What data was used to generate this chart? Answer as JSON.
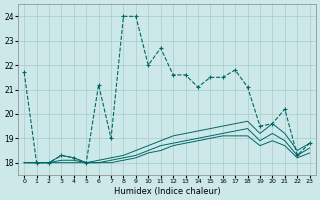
{
  "title": "",
  "xlabel": "Humidex (Indice chaleur)",
  "ylabel": "",
  "background_color": "#cde8e8",
  "grid_color": "#aacccc",
  "line_color": "#006666",
  "xlim": [
    -0.5,
    23.5
  ],
  "ylim": [
    17.5,
    24.5
  ],
  "yticks": [
    18,
    19,
    20,
    21,
    22,
    23,
    24
  ],
  "xticks": [
    0,
    1,
    2,
    3,
    4,
    5,
    6,
    7,
    8,
    9,
    10,
    11,
    12,
    13,
    14,
    15,
    16,
    17,
    18,
    19,
    20,
    21,
    22,
    23
  ],
  "series": [
    {
      "x": [
        0,
        1,
        2,
        3,
        4,
        5,
        6,
        7,
        8,
        9,
        10,
        11,
        12,
        13,
        14,
        15,
        16,
        17,
        18,
        19,
        20,
        21,
        22,
        23
      ],
      "y": [
        21.7,
        18.0,
        18.0,
        18.3,
        18.2,
        18.0,
        21.2,
        19.0,
        24.0,
        24.0,
        22.0,
        22.7,
        21.6,
        21.6,
        21.1,
        21.5,
        21.5,
        21.8,
        21.1,
        19.5,
        19.6,
        20.2,
        18.3,
        18.8
      ],
      "linestyle": "--",
      "marker": "+",
      "markersize": 3,
      "linewidth": 0.8
    },
    {
      "x": [
        0,
        1,
        2,
        3,
        4,
        5,
        6,
        7,
        8,
        9,
        10,
        11,
        12,
        13,
        14,
        15,
        16,
        17,
        18,
        19,
        20,
        21,
        22,
        23
      ],
      "y": [
        18.0,
        18.0,
        18.0,
        18.3,
        18.2,
        18.0,
        18.1,
        18.2,
        18.3,
        18.5,
        18.7,
        18.9,
        19.1,
        19.2,
        19.3,
        19.4,
        19.5,
        19.6,
        19.7,
        19.2,
        19.6,
        19.2,
        18.5,
        18.8
      ],
      "linestyle": "-",
      "marker": null,
      "markersize": 0,
      "linewidth": 0.7
    },
    {
      "x": [
        0,
        1,
        2,
        3,
        4,
        5,
        6,
        7,
        8,
        9,
        10,
        11,
        12,
        13,
        14,
        15,
        16,
        17,
        18,
        19,
        20,
        21,
        22,
        23
      ],
      "y": [
        18.0,
        18.0,
        18.0,
        18.1,
        18.1,
        18.0,
        18.0,
        18.1,
        18.2,
        18.3,
        18.5,
        18.7,
        18.8,
        18.9,
        19.0,
        19.1,
        19.2,
        19.3,
        19.4,
        18.9,
        19.2,
        18.9,
        18.3,
        18.6
      ],
      "linestyle": "-",
      "marker": null,
      "markersize": 0,
      "linewidth": 0.7
    },
    {
      "x": [
        0,
        1,
        2,
        3,
        4,
        5,
        6,
        7,
        8,
        9,
        10,
        11,
        12,
        13,
        14,
        15,
        16,
        17,
        18,
        19,
        20,
        21,
        22,
        23
      ],
      "y": [
        18.0,
        18.0,
        18.0,
        18.0,
        18.0,
        18.0,
        18.0,
        18.0,
        18.1,
        18.2,
        18.4,
        18.5,
        18.7,
        18.8,
        18.9,
        19.0,
        19.1,
        19.1,
        19.1,
        18.7,
        18.9,
        18.7,
        18.2,
        18.4
      ],
      "linestyle": "-",
      "marker": null,
      "markersize": 0,
      "linewidth": 0.7
    }
  ]
}
